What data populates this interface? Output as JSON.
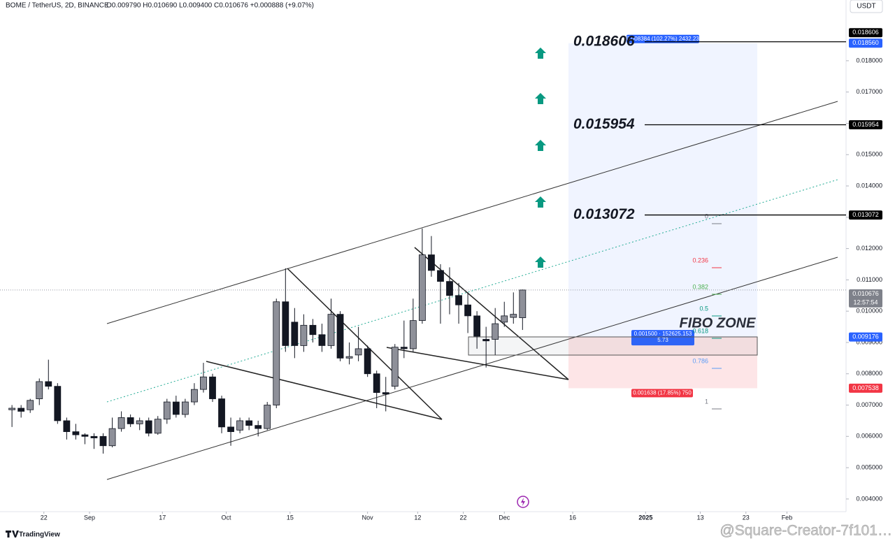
{
  "header": {
    "symbol": "BOME / TetherUS, 2D, BINANCE",
    "ohlc": "O0.009790 H0.010690 L0.009400 C0.010676 +0.000888 (+9.07%)",
    "currency": "USDT"
  },
  "chart_data": {
    "type": "candlestick",
    "x": [
      -7,
      -5,
      -3,
      -1,
      1,
      3,
      5,
      7,
      9,
      11,
      13,
      15,
      17,
      19,
      21,
      23,
      25,
      27,
      29,
      31,
      33,
      35,
      37,
      39,
      41,
      43,
      45,
      47,
      49,
      51,
      53,
      55,
      57,
      59,
      61,
      63,
      65,
      67,
      69,
      71,
      73,
      75,
      77,
      79,
      81,
      83,
      85,
      87,
      89,
      91,
      93,
      95,
      97,
      99,
      101,
      103,
      105
    ],
    "open": [
      0.00685,
      0.0069,
      0.00685,
      0.0072,
      0.00775,
      0.0076,
      0.0065,
      0.00615,
      0.00605,
      0.006,
      0.006,
      0.0057,
      0.00625,
      0.0066,
      0.0064,
      0.0065,
      0.0061,
      0.00655,
      0.0071,
      0.0067,
      0.0071,
      0.0075,
      0.0079,
      0.0072,
      0.0063,
      0.0062,
      0.0065,
      0.00635,
      0.00625,
      0.007,
      0.0103,
      0.00965,
      0.0089,
      0.00955,
      0.00925,
      0.0089,
      0.0099,
      0.0085,
      0.0086,
      0.0088,
      0.008,
      0.0074,
      0.0076,
      0.00885,
      0.0088,
      0.0097,
      0.0118,
      0.0113,
      0.01095,
      0.0105,
      0.0102,
      0.00985,
      0.0091,
      0.0091,
      0.00965,
      0.0098,
      0.00979
    ],
    "high": [
      0.007,
      0.007,
      0.0072,
      0.00785,
      0.00845,
      0.0077,
      0.0066,
      0.0064,
      0.0061,
      0.0061,
      0.0061,
      0.0066,
      0.0068,
      0.0067,
      0.0066,
      0.0066,
      0.00665,
      0.0072,
      0.0073,
      0.0072,
      0.0077,
      0.00835,
      0.008,
      0.0073,
      0.0066,
      0.0066,
      0.0066,
      0.0065,
      0.0071,
      0.0104,
      0.01137,
      0.0101,
      0.0099,
      0.00975,
      0.0096,
      0.0104,
      0.01,
      0.009,
      0.0095,
      0.0089,
      0.0081,
      0.0079,
      0.00895,
      0.0097,
      0.0104,
      0.01264,
      0.0124,
      0.0115,
      0.0114,
      0.0109,
      0.0106,
      0.01,
      0.0095,
      0.0101,
      0.0103,
      0.0106,
      0.01069
    ],
    "low": [
      0.0063,
      0.0066,
      0.00675,
      0.007,
      0.0075,
      0.0064,
      0.0059,
      0.0059,
      0.00575,
      0.0056,
      0.00545,
      0.00565,
      0.00615,
      0.0063,
      0.0062,
      0.006,
      0.00605,
      0.0064,
      0.0066,
      0.0066,
      0.007,
      0.0074,
      0.0071,
      0.0061,
      0.0057,
      0.0061,
      0.0062,
      0.006,
      0.0062,
      0.0069,
      0.0087,
      0.0085,
      0.0087,
      0.009,
      0.0087,
      0.0088,
      0.0084,
      0.0083,
      0.0084,
      0.0079,
      0.0069,
      0.0068,
      0.0075,
      0.0085,
      0.0087,
      0.0096,
      0.0111,
      0.0096,
      0.0099,
      0.0096,
      0.0093,
      0.0088,
      0.0082,
      0.0086,
      0.0095,
      0.0096,
      0.0094
    ],
    "close": [
      0.0069,
      0.0068,
      0.00715,
      0.00775,
      0.0076,
      0.0065,
      0.00615,
      0.00605,
      0.006,
      0.00595,
      0.0057,
      0.00625,
      0.0066,
      0.0064,
      0.0065,
      0.0061,
      0.00655,
      0.0071,
      0.0067,
      0.0071,
      0.0075,
      0.0079,
      0.0072,
      0.0063,
      0.00615,
      0.0065,
      0.00635,
      0.00625,
      0.007,
      0.0103,
      0.0089,
      0.0089,
      0.00955,
      0.00925,
      0.0089,
      0.0099,
      0.0085,
      0.00855,
      0.0088,
      0.008,
      0.0074,
      0.00735,
      0.00885,
      0.0088,
      0.0097,
      0.0118,
      0.0113,
      0.01095,
      0.0105,
      0.0102,
      0.00985,
      0.0092,
      0.00905,
      0.0096,
      0.00985,
      0.0099,
      0.010676
    ],
    "up_color": "#8e9099",
    "down_color": "#131722",
    "xlim": [
      -8.4,
      175.2
    ],
    "xticks": [
      {
        "value": 0,
        "label": "22"
      },
      {
        "value": 10,
        "label": "Sep"
      },
      {
        "value": 26,
        "label": "17"
      },
      {
        "value": 40,
        "label": "Oct"
      },
      {
        "value": 54,
        "label": "15"
      },
      {
        "value": 71,
        "label": "Nov"
      },
      {
        "value": 82,
        "label": "12"
      },
      {
        "value": 92,
        "label": "22"
      },
      {
        "value": 101,
        "label": "Dec"
      },
      {
        "value": 116,
        "label": "16"
      },
      {
        "value": 132,
        "label": "2025"
      },
      {
        "value": 144,
        "label": "13"
      },
      {
        "value": 154,
        "label": "23"
      },
      {
        "value": 163,
        "label": "Feb"
      }
    ],
    "ylim": [
      0.00364,
      0.01994
    ],
    "yticks": [
      {
        "value": 0.004,
        "label": "0.004000"
      },
      {
        "value": 0.005,
        "label": "0.005000"
      },
      {
        "value": 0.006,
        "label": "0.006000"
      },
      {
        "value": 0.007,
        "label": "0.007000"
      },
      {
        "value": 0.008,
        "label": "0.008000"
      },
      {
        "value": 0.009,
        "label": "0.009000"
      },
      {
        "value": 0.01,
        "label": "0.010000"
      },
      {
        "value": 0.011,
        "label": "0.011000"
      },
      {
        "value": 0.012,
        "label": "0.012000"
      },
      {
        "value": 0.013,
        "label": "0.013000"
      },
      {
        "value": 0.014,
        "label": "0.014000"
      },
      {
        "value": 0.015,
        "label": "0.015000"
      },
      {
        "value": 0.016,
        "label": "0.016000"
      },
      {
        "value": 0.017,
        "label": "0.017000"
      },
      {
        "value": 0.018,
        "label": "0.018000"
      }
    ],
    "levels": [
      {
        "value": 0.018606,
        "label": "0.018606"
      },
      {
        "value": 0.015954,
        "label": "0.015954"
      },
      {
        "value": 0.013072,
        "label": "0.013072"
      }
    ],
    "price_labels": [
      {
        "value": 0.018606,
        "label": "0.018606",
        "color": "#000000"
      },
      {
        "value": 0.01856,
        "label": "0.018560",
        "color": "#2962ff"
      },
      {
        "value": 0.015954,
        "label": "0.015954",
        "color": "#000000"
      },
      {
        "value": 0.013072,
        "label": "0.013072",
        "color": "#000000"
      },
      {
        "value": 0.010676,
        "label": "0.010676",
        "color": "#7e818a",
        "countdown": "12:57:54"
      },
      {
        "value": 0.009176,
        "label": "0.009176",
        "color": "#2962ff"
      },
      {
        "value": 0.007538,
        "label": "0.007538",
        "color": "#f23645"
      }
    ],
    "position": {
      "target_label": "0.008384 (102.27%) 2432.23",
      "entry_label": "0.001500 · 152625.153",
      "entry_sublabel": "5.73",
      "stop_label": "0.001638 (17.85%) 750"
    },
    "fib_labels": [
      "0",
      "0.236",
      "0.382",
      "0.5",
      "0.618",
      "0.786",
      "1"
    ],
    "annotation": "FIBO ZONE"
  },
  "footer": {
    "brand": "TradingView",
    "watermark": "@Square-Creator-7f101…"
  }
}
